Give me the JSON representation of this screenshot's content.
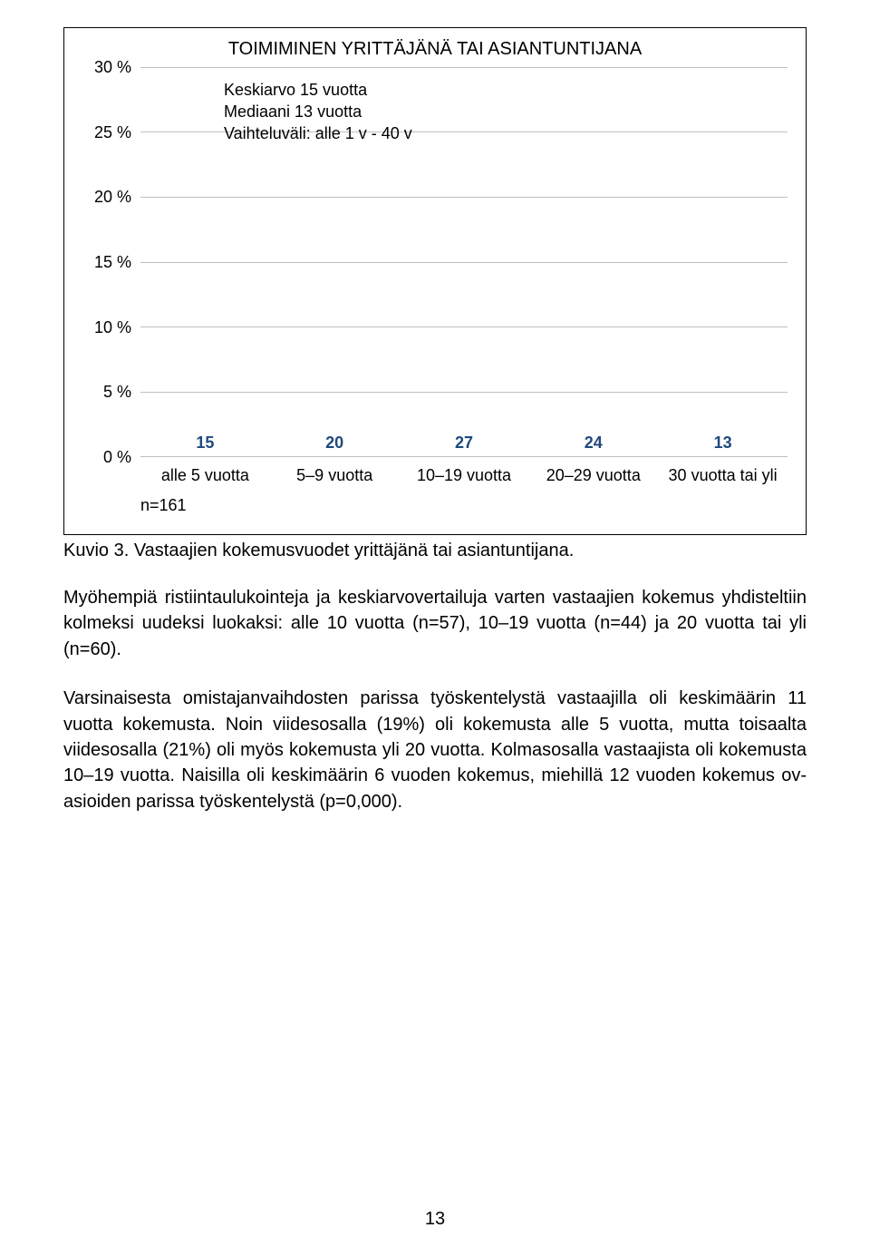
{
  "chart": {
    "type": "bar",
    "title": "TOIMIMINEN YRITTÄJÄNÄ TAI ASIANTUNTIJANA",
    "annotation_lines": [
      "Keskiarvo 15 vuotta",
      "Mediaani 13 vuotta",
      "Vaihteluväli: alle 1 v - 40 v"
    ],
    "y_ticks": [
      "30 %",
      "25 %",
      "20 %",
      "15 %",
      "10 %",
      "5 %",
      "0 %"
    ],
    "ymax": 30,
    "categories": [
      "alle 5 vuotta",
      "5–9 vuotta",
      "10–19 vuotta",
      "20–29 vuotta",
      "30 vuotta tai yli"
    ],
    "values": [
      15,
      20,
      27,
      24,
      13
    ],
    "bar_color": "#4f81bd",
    "grid_color": "#bfbfbf",
    "annotation_top_pct": 3,
    "value_label_color": "#1f497d",
    "n_label": "n=161"
  },
  "caption": "Kuvio 3. Vastaajien kokemusvuodet yrittäjänä tai asiantuntijana.",
  "para1": "Myöhempiä ristiintaulukointeja ja keskiarvovertailuja varten vastaajien kokemus yhdisteltiin kolmeksi uudeksi luokaksi: alle 10 vuotta (n=57), 10–19 vuotta (n=44) ja 20 vuotta tai yli (n=60).",
  "para2": "Varsinaisesta omistajanvaihdosten parissa työskentelystä vastaajilla oli keskimäärin 11 vuotta kokemusta. Noin viidesosalla (19%) oli kokemusta alle 5 vuotta, mutta toisaalta viidesosalla (21%) oli myös kokemusta yli 20 vuotta. Kolmasosalla vastaajista oli kokemusta 10–19 vuotta. Naisilla oli keskimäärin 6 vuoden kokemus, miehillä 12 vuoden kokemus ov-asioiden parissa työskentelystä (p=0,000).",
  "page_number": "13"
}
